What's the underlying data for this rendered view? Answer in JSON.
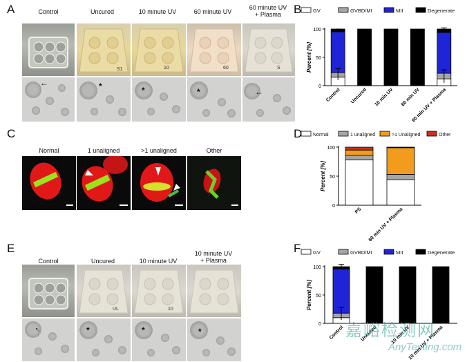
{
  "panels": {
    "A": {
      "label": "A",
      "headers": [
        "Control",
        "Uncured",
        "10 minute UV",
        "60 minute UV",
        "60 minute UV\n+ Plasma"
      ]
    },
    "B": {
      "label": "B",
      "chart_data": {
        "type": "bar",
        "stacked": true,
        "title": "",
        "ylabel": "Percent [%]",
        "xlabel": "",
        "ylim": [
          0,
          100
        ],
        "yticks": [
          0,
          50,
          100
        ],
        "categories": [
          "Control",
          "Uncured",
          "10 min UV",
          "60 min UV",
          "60 min UV + Plasma"
        ],
        "legend": [
          "GV",
          "GVBD/MI",
          "MII",
          "Degenerate"
        ],
        "series": [
          {
            "name": "GV",
            "color": "#ffffff",
            "values": [
              15,
              0,
              0,
              0,
              12
            ]
          },
          {
            "name": "GVBD/MI",
            "color": "#a6a6a6",
            "values": [
              8,
              0,
              0,
              0,
              10
            ]
          },
          {
            "name": "MII",
            "color": "#1f25d6",
            "values": [
              72,
              0,
              0,
              0,
              72
            ]
          },
          {
            "name": "Degenerate",
            "color": "#000000",
            "values": [
              5,
              100,
              100,
              100,
              6
            ]
          }
        ]
      }
    },
    "C": {
      "label": "C",
      "headers": [
        "Normal",
        "1 unaligned",
        ">1 unaligned",
        "Other"
      ]
    },
    "D": {
      "label": "D",
      "chart_data": {
        "type": "bar",
        "stacked": true,
        "ylabel": "Percent [%]",
        "ylim": [
          0,
          100
        ],
        "yticks": [
          0,
          50,
          100
        ],
        "categories": [
          "PS",
          "60 min UV + Plasma"
        ],
        "legend": [
          "Normal",
          "1 unaligned",
          ">1 Unaligned",
          "Other"
        ],
        "series": [
          {
            "name": "Normal",
            "color": "#ffffff",
            "values": [
              78,
              44
            ]
          },
          {
            "name": "1 unaligned",
            "color": "#a6a6a6",
            "values": [
              8,
              9
            ]
          },
          {
            "name": ">1 Unaligned",
            "color": "#f29b1d",
            "values": [
              9,
              46
            ]
          },
          {
            "name": "Other",
            "color": "#d42a1e",
            "values": [
              5,
              1
            ]
          }
        ]
      }
    },
    "E": {
      "label": "E",
      "headers": [
        "Control",
        "Uncured",
        "10 minute UV",
        "10 minute UV\n+ Plasma"
      ]
    },
    "F": {
      "label": "F",
      "chart_data": {
        "type": "bar",
        "stacked": true,
        "ylabel": "Percent [%]",
        "ylim": [
          0,
          100
        ],
        "yticks": [
          0,
          50,
          100
        ],
        "categories": [
          "Control",
          "Uncured",
          "10 min UV",
          "10 min UV + Plasma"
        ],
        "legend": [
          "GV",
          "GVBD/MI",
          "MII",
          "Degenerate"
        ],
        "series": [
          {
            "name": "GV",
            "color": "#ffffff",
            "values": [
              10,
              0,
              0,
              0
            ]
          },
          {
            "name": "GVBD/MI",
            "color": "#a6a6a6",
            "values": [
              8,
              0,
              0,
              0
            ]
          },
          {
            "name": "MII",
            "color": "#1f25d6",
            "values": [
              78,
              0,
              0,
              0
            ]
          },
          {
            "name": "Degenerate",
            "color": "#000000",
            "values": [
              4,
              100,
              100,
              100
            ]
          }
        ]
      }
    }
  },
  "watermark": {
    "cn": "嘉峪检测网",
    "en": "AnyTesting.com"
  },
  "plate_labels": [
    "S1",
    "10",
    "60",
    "S",
    "UL",
    "10"
  ],
  "marks": {
    "star": "*",
    "arrow": "←"
  }
}
